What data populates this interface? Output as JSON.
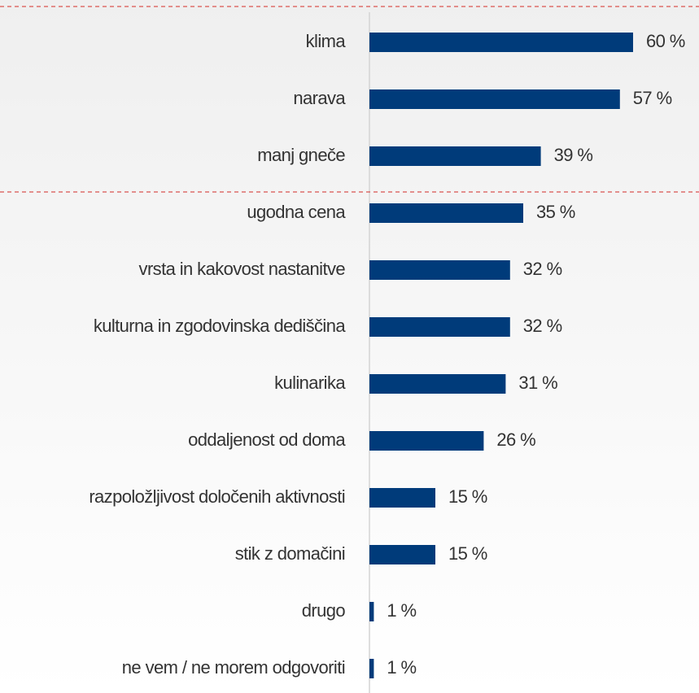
{
  "chart_data": {
    "type": "bar",
    "orientation": "horizontal",
    "color": "#003b7a",
    "categories": [
      "klima",
      "narava",
      "manj gneče",
      "ugodna cena",
      "vrsta in kakovost nastanitve",
      "kulturna in zgodovinska dediščina",
      "kulinarika",
      "oddaljenost od doma",
      "razpoložljivost določenih aktivnosti",
      "stik z domačini",
      "drugo",
      "ne vem / ne morem odgovoriti"
    ],
    "values": [
      60,
      57,
      39,
      35,
      32,
      32,
      31,
      26,
      15,
      15,
      1,
      1
    ],
    "value_labels": [
      "60 %",
      "57 %",
      "39 %",
      "35 %",
      "32 %",
      "32 %",
      "31 %",
      "26 %",
      "15 %",
      "15 %",
      "1 %",
      "1 %"
    ]
  }
}
